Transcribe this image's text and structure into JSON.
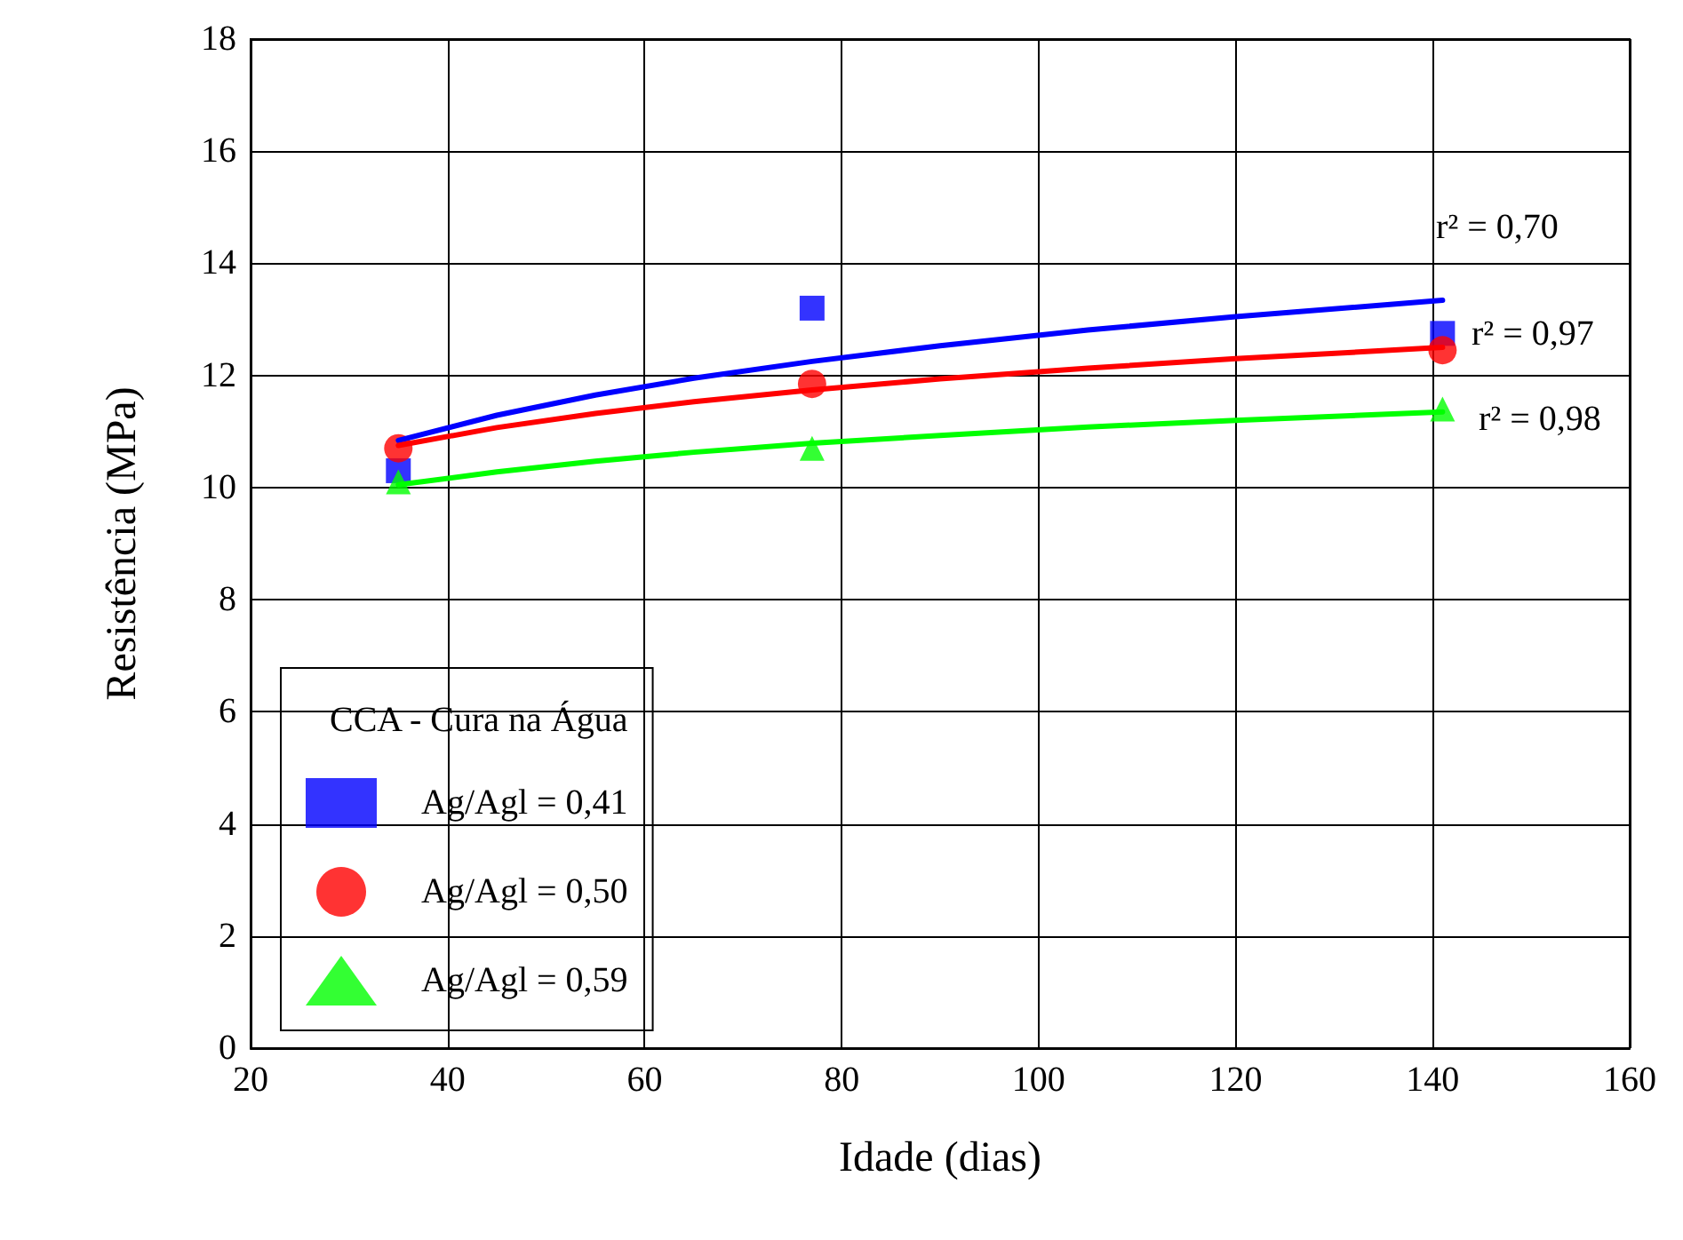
{
  "chart_data": {
    "type": "scatter",
    "xlabel": "Idade (dias)",
    "ylabel": "Resistência (MPa)",
    "legend_title": "CCA - Cura na Água",
    "xlim": [
      20,
      160
    ],
    "xticks": [
      20,
      40,
      60,
      80,
      100,
      120,
      140,
      160
    ],
    "ylim": [
      0,
      18
    ],
    "yticks": [
      0,
      2,
      4,
      6,
      8,
      10,
      12,
      14,
      16,
      18
    ],
    "grid": true,
    "legend": "bottom left",
    "series": [
      {
        "name": "Ag/Agl = 0,41",
        "color": "#0000ff",
        "marker": "square",
        "x": [
          35,
          77,
          141
        ],
        "values": [
          10.3,
          13.2,
          12.75
        ]
      },
      {
        "name": "Ag/Agl = 0,50",
        "color": "#ff0000",
        "marker": "circle",
        "x": [
          35,
          77,
          141
        ],
        "values": [
          10.7,
          11.85,
          12.45
        ]
      },
      {
        "name": "Ag/Agl = 0,59",
        "color": "#00ff00",
        "marker": "triangle",
        "x": [
          35,
          77,
          141
        ],
        "values": [
          10.1,
          10.7,
          11.4
        ]
      },
      {
        "type": "line",
        "color": "#0000ff",
        "marker": "none",
        "x": [
          35,
          45,
          55,
          65,
          77,
          90,
          105,
          120,
          141
        ],
        "values": [
          10.84,
          11.29,
          11.65,
          11.95,
          12.25,
          12.53,
          12.81,
          13.05,
          13.34
        ]
      },
      {
        "type": "line",
        "color": "#ff0000",
        "marker": "none",
        "x": [
          35,
          45,
          55,
          65,
          77,
          90,
          105,
          120,
          141
        ],
        "values": [
          10.75,
          11.07,
          11.32,
          11.53,
          11.74,
          11.94,
          12.13,
          12.3,
          12.5
        ]
      },
      {
        "type": "line",
        "color": "#00ff00",
        "marker": "none",
        "x": [
          35,
          45,
          55,
          65,
          77,
          90,
          105,
          120,
          141
        ],
        "values": [
          10.05,
          10.28,
          10.47,
          10.63,
          10.79,
          10.93,
          11.08,
          11.2,
          11.35
        ]
      }
    ],
    "annotations": [
      "r² = 0,70",
      "r² = 0,97",
      "r² = 0,98"
    ]
  }
}
